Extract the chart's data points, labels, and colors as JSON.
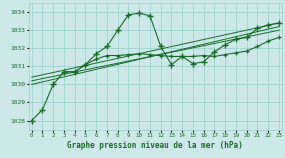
{
  "title": "Graphe pression niveau de la mer (hPa)",
  "bg_color": "#cce8e8",
  "grid_color": "#99cccc",
  "line_color": "#1a6b2a",
  "line1_x": [
    0,
    1,
    2,
    3,
    4,
    5,
    6,
    7,
    8,
    9,
    10,
    11,
    12,
    13,
    14,
    15,
    16,
    17,
    18,
    19,
    20,
    21,
    22,
    23
  ],
  "line1_y": [
    1028.0,
    1028.6,
    1030.0,
    1030.7,
    1030.7,
    1031.1,
    1031.7,
    1032.1,
    1033.0,
    1033.85,
    1033.95,
    1033.8,
    1032.1,
    1031.1,
    1031.55,
    1031.15,
    1031.25,
    1031.8,
    1032.2,
    1032.5,
    1032.6,
    1033.1,
    1033.3,
    1033.4
  ],
  "line2_x": [
    3,
    4,
    5,
    6,
    7,
    8,
    9,
    10,
    11,
    12,
    13,
    14,
    15,
    16,
    17,
    18,
    19,
    20,
    21,
    22,
    23
  ],
  "line2_y": [
    1030.7,
    1030.7,
    1031.1,
    1031.4,
    1031.6,
    1031.6,
    1031.65,
    1031.7,
    1031.65,
    1031.6,
    1031.55,
    1031.55,
    1031.55,
    1031.6,
    1031.55,
    1031.65,
    1031.75,
    1031.85,
    1032.1,
    1032.4,
    1032.6
  ],
  "line3_x": [
    0,
    23
  ],
  "line3_y": [
    1030.0,
    1033.2
  ],
  "line4_x": [
    0,
    23
  ],
  "line4_y": [
    1030.2,
    1033.0
  ],
  "line5_x": [
    0,
    23
  ],
  "line5_y": [
    1030.4,
    1033.4
  ],
  "ylim": [
    1027.5,
    1034.5
  ],
  "yticks": [
    1028,
    1029,
    1030,
    1031,
    1032,
    1033,
    1034
  ],
  "xticks": [
    0,
    1,
    2,
    3,
    4,
    5,
    6,
    7,
    8,
    9,
    10,
    11,
    12,
    13,
    14,
    15,
    16,
    17,
    18,
    19,
    20,
    21,
    22,
    23
  ],
  "xlim": [
    -0.3,
    23.3
  ]
}
